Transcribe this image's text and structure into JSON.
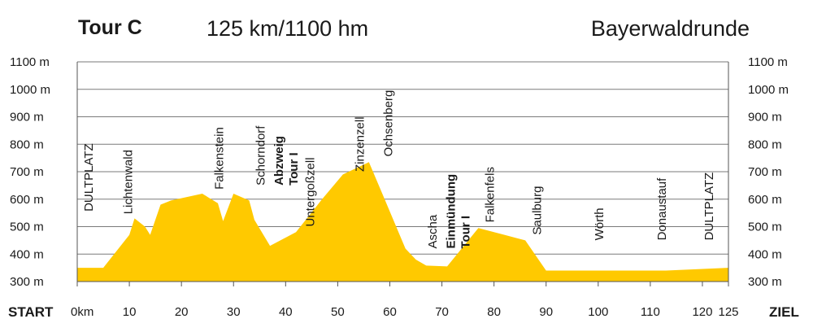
{
  "header": {
    "tour_label": "Tour C",
    "distance_elevation": "125 km/1100 hm",
    "route_name": "Bayerwaldrunde"
  },
  "colors": {
    "profile_fill": "#ffc900",
    "title_color": "#f5c400",
    "grid": "#7a7a7a",
    "text": "#1a1a1a"
  },
  "chart_data": {
    "type": "area",
    "xlim": [
      0,
      125
    ],
    "ylim": [
      300,
      1100
    ],
    "y_ticks": [
      {
        "value": 1100,
        "label": "1100 m"
      },
      {
        "value": 1000,
        "label": "1000 m"
      },
      {
        "value": 900,
        "label": "900 m"
      },
      {
        "value": 800,
        "label": "800 m"
      },
      {
        "value": 700,
        "label": "700 m"
      },
      {
        "value": 600,
        "label": "600 m"
      },
      {
        "value": 500,
        "label": "500 m"
      },
      {
        "value": 400,
        "label": "400 m"
      },
      {
        "value": 300,
        "label": "300 m"
      }
    ],
    "x_ticks": [
      {
        "value": 0,
        "label": "0km"
      },
      {
        "value": 10,
        "label": "10"
      },
      {
        "value": 20,
        "label": "20"
      },
      {
        "value": 30,
        "label": "30"
      },
      {
        "value": 40,
        "label": "40"
      },
      {
        "value": 50,
        "label": "50"
      },
      {
        "value": 60,
        "label": "60"
      },
      {
        "value": 70,
        "label": "70"
      },
      {
        "value": 80,
        "label": "80"
      },
      {
        "value": 90,
        "label": "90"
      },
      {
        "value": 100,
        "label": "100"
      },
      {
        "value": 110,
        "label": "110"
      },
      {
        "value": 120,
        "label": "120"
      },
      {
        "value": 125,
        "label": "125"
      }
    ],
    "start_label": "START",
    "end_label": "ZIEL",
    "profile": [
      [
        0,
        350
      ],
      [
        4,
        350
      ],
      [
        5,
        350
      ],
      [
        10,
        470
      ],
      [
        11,
        530
      ],
      [
        13,
        500
      ],
      [
        14,
        470
      ],
      [
        16,
        580
      ],
      [
        18,
        595
      ],
      [
        24,
        620
      ],
      [
        27,
        585
      ],
      [
        28,
        520
      ],
      [
        30,
        620
      ],
      [
        33,
        595
      ],
      [
        34,
        525
      ],
      [
        37,
        430
      ],
      [
        42,
        480
      ],
      [
        47,
        600
      ],
      [
        51,
        690
      ],
      [
        56,
        735
      ],
      [
        59,
        600
      ],
      [
        63,
        420
      ],
      [
        65,
        380
      ],
      [
        67,
        358
      ],
      [
        71,
        355
      ],
      [
        77,
        495
      ],
      [
        82,
        470
      ],
      [
        86,
        450
      ],
      [
        90,
        340
      ],
      [
        101,
        340
      ],
      [
        113,
        340
      ],
      [
        125,
        350
      ]
    ],
    "places": [
      {
        "x": 3,
        "y": 555,
        "lines": [
          "DULTPLATZ"
        ],
        "bold": false
      },
      {
        "x": 10.5,
        "y": 545,
        "lines": [
          "Lichtenwald"
        ],
        "bold": false
      },
      {
        "x": 28,
        "y": 635,
        "lines": [
          "Falkenstein"
        ],
        "bold": false
      },
      {
        "x": 36,
        "y": 650,
        "lines": [
          "Schorndorf"
        ],
        "bold": false
      },
      {
        "x": 39.5,
        "y": 650,
        "lines": [
          "Abzweig",
          "Tour I"
        ],
        "bold": true
      },
      {
        "x": 45.5,
        "y": 500,
        "lines": [
          "Untergoßzell"
        ],
        "bold": false
      },
      {
        "x": 55,
        "y": 700,
        "lines": [
          "Zinzenzell"
        ],
        "bold": false
      },
      {
        "x": 60.5,
        "y": 755,
        "lines": [
          "Ochsenberg"
        ],
        "bold": false
      },
      {
        "x": 69,
        "y": 420,
        "lines": [
          "Ascha"
        ],
        "bold": false
      },
      {
        "x": 72.5,
        "y": 420,
        "lines": [
          "Einmündung",
          "Tour I"
        ],
        "bold": true
      },
      {
        "x": 80,
        "y": 515,
        "lines": [
          "Falkenfels"
        ],
        "bold": false
      },
      {
        "x": 89,
        "y": 470,
        "lines": [
          "Saulburg"
        ],
        "bold": false
      },
      {
        "x": 101,
        "y": 450,
        "lines": [
          "Wörth"
        ],
        "bold": false
      },
      {
        "x": 113,
        "y": 450,
        "lines": [
          "Donaustauf"
        ],
        "bold": false
      },
      {
        "x": 122,
        "y": 450,
        "lines": [
          "DULTPLATZ"
        ],
        "bold": false
      }
    ]
  }
}
